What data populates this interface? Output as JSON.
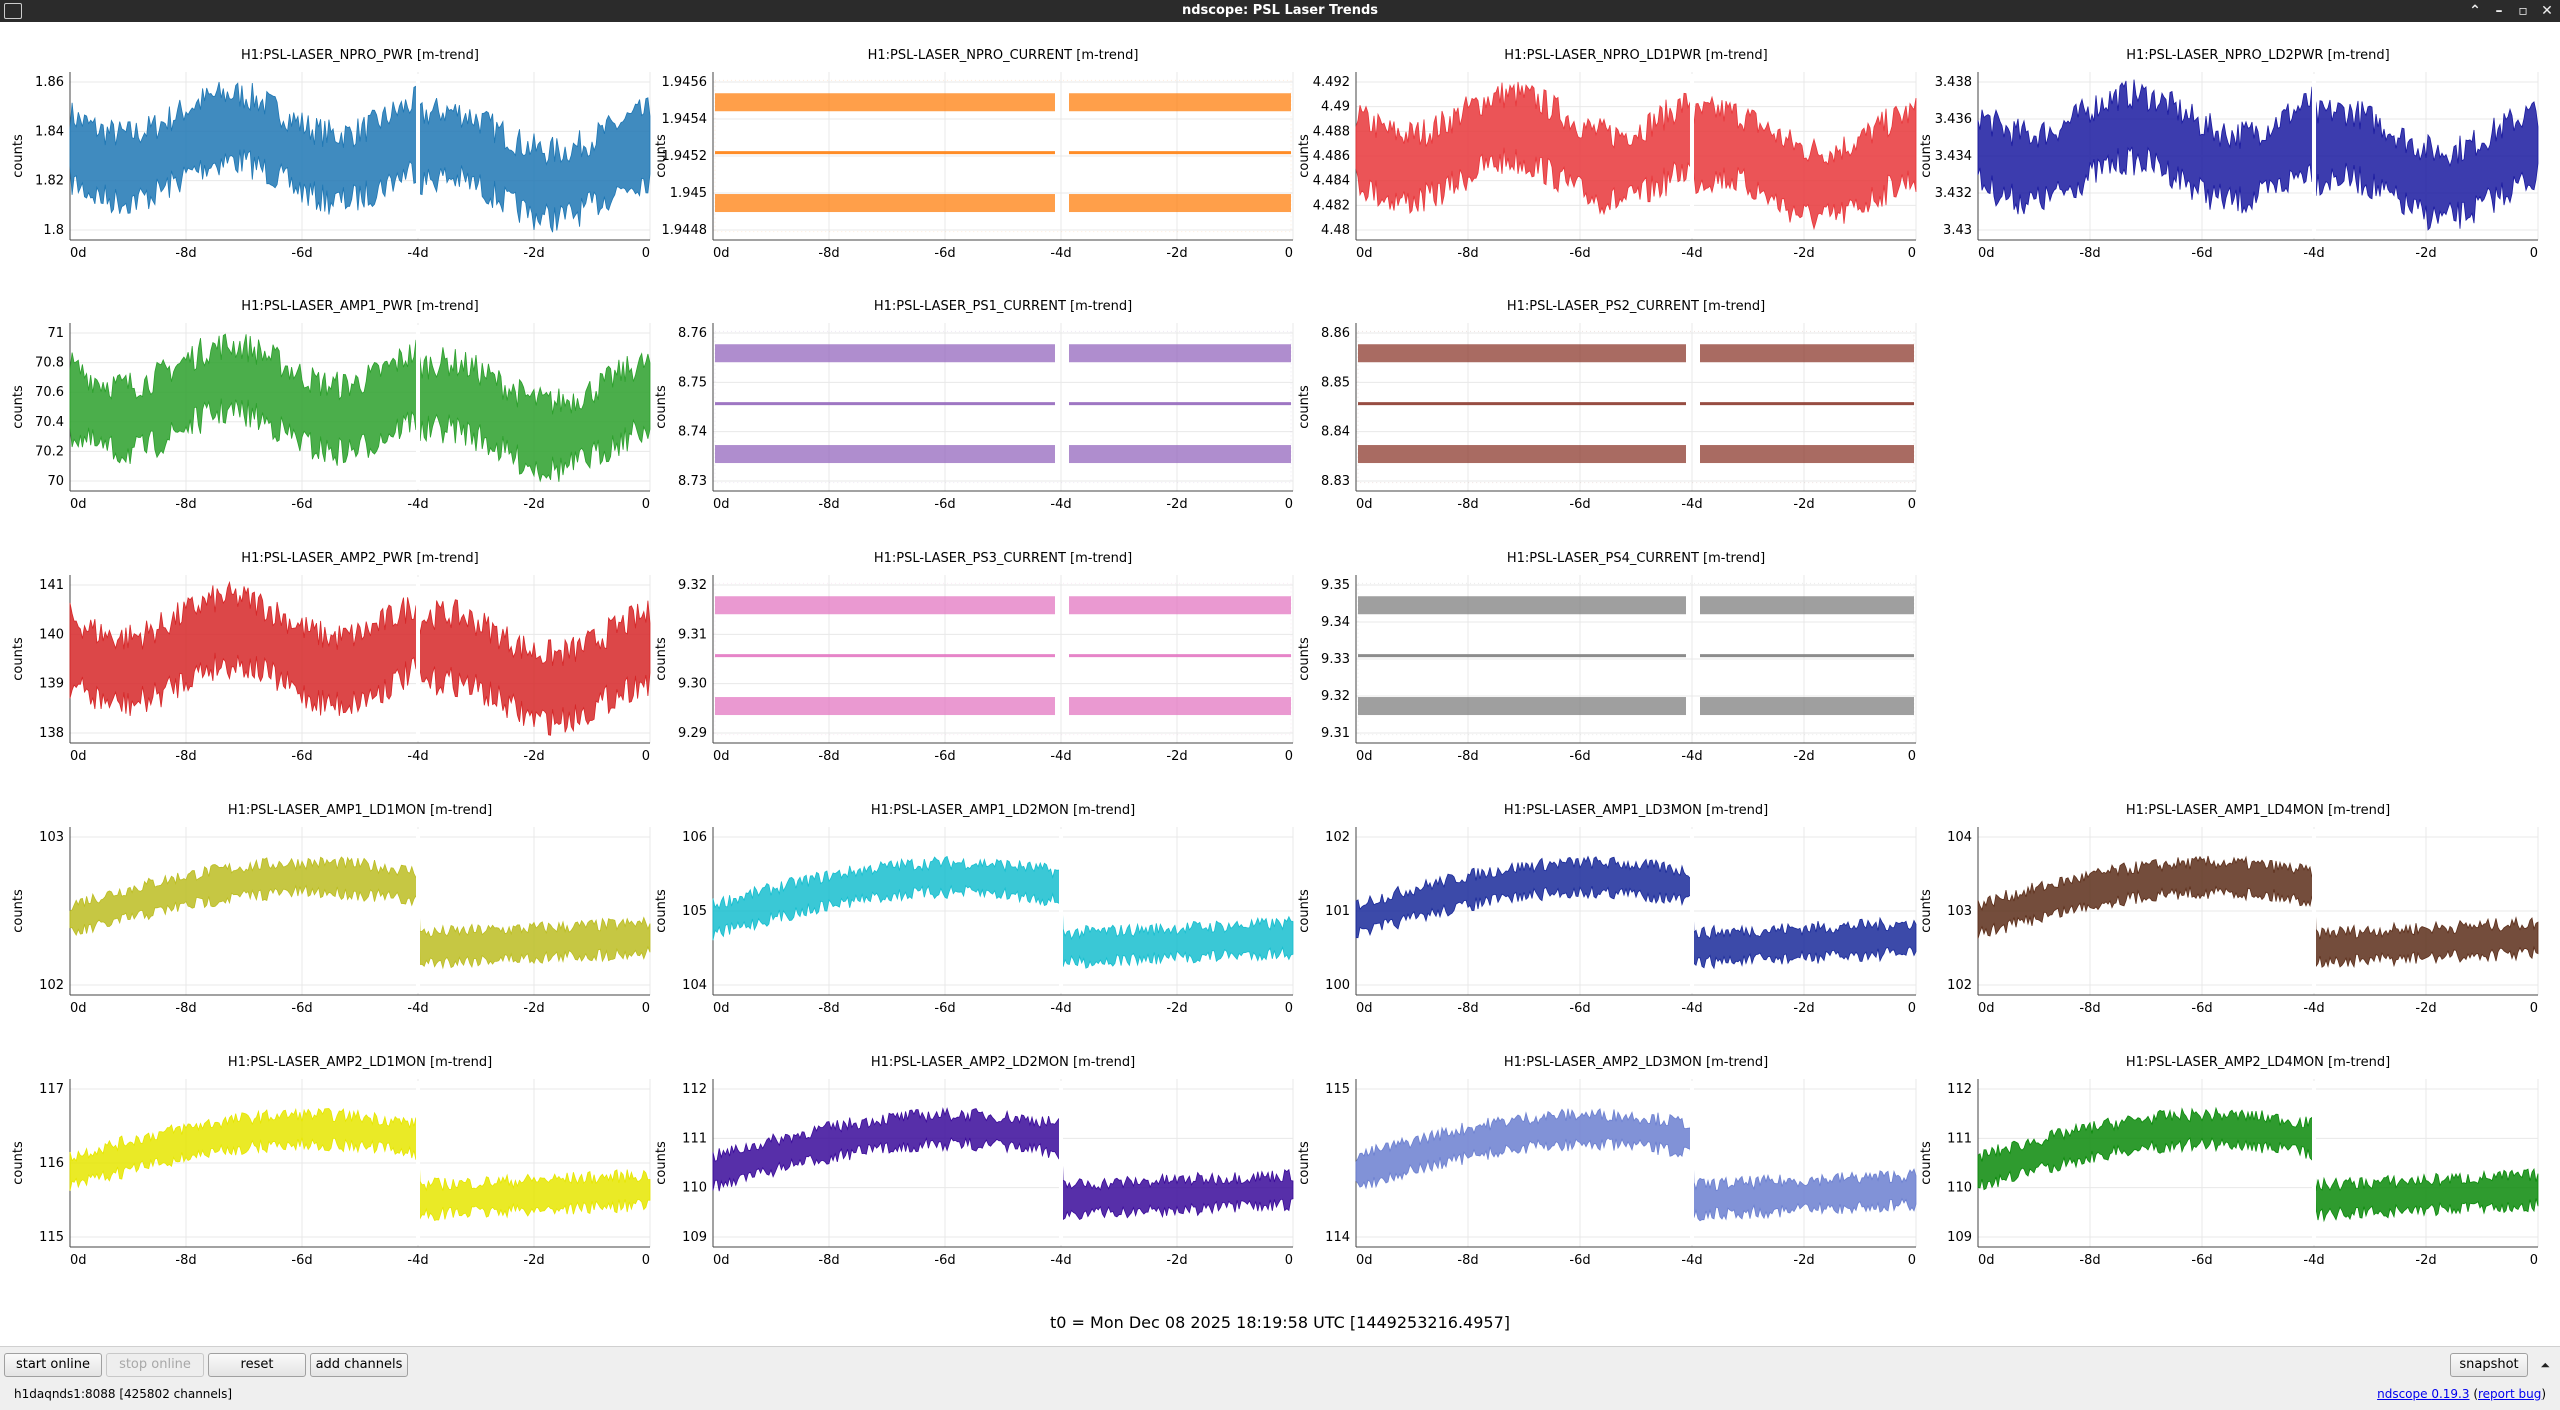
{
  "window": {
    "title": "ndscope: PSL Laser Trends",
    "buttons": {
      "minimize_up": "⌃",
      "minimize": "–",
      "maximize": "▫",
      "close": "✕"
    }
  },
  "axis": {
    "ylabel": "counts",
    "xticks": [
      "0d",
      "-8d",
      "-6d",
      "-4d",
      "-2d",
      "0"
    ]
  },
  "plots": [
    {
      "row": 0,
      "col": 0,
      "title": "H1:PSL-LASER_NPRO_PWR [m-trend]",
      "color": "#1f77b4",
      "yticks": [
        "1.86",
        "1.84",
        "1.82",
        "1.8"
      ],
      "style": "noise"
    },
    {
      "row": 0,
      "col": 1,
      "title": "H1:PSL-LASER_NPRO_CURRENT [m-trend]",
      "color": "#ff7f0e",
      "yticks": [
        "1.9456",
        "1.9454",
        "1.9452",
        "1.945",
        "1.9448"
      ],
      "style": "bands"
    },
    {
      "row": 0,
      "col": 2,
      "title": "H1:PSL-LASER_NPRO_LD1PWR [m-trend]",
      "color": "#e8363a",
      "yticks": [
        "4.492",
        "4.49",
        "4.488",
        "4.486",
        "4.484",
        "4.482",
        "4.48"
      ],
      "style": "noise"
    },
    {
      "row": 0,
      "col": 3,
      "title": "H1:PSL-LASER_NPRO_LD2PWR [m-trend]",
      "color": "#1a1aa0",
      "yticks": [
        "3.438",
        "3.436",
        "3.434",
        "3.432",
        "3.43"
      ],
      "style": "noise"
    },
    {
      "row": 1,
      "col": 0,
      "title": "H1:PSL-LASER_AMP1_PWR [m-trend]",
      "color": "#2ca02c",
      "yticks": [
        "71",
        "70.8",
        "70.6",
        "70.4",
        "70.2",
        "70"
      ],
      "style": "noise"
    },
    {
      "row": 1,
      "col": 1,
      "title": "H1:PSL-LASER_PS1_CURRENT [m-trend]",
      "color": "#9467bd",
      "yticks": [
        "8.76",
        "8.75",
        "8.74",
        "8.73"
      ],
      "style": "bands"
    },
    {
      "row": 1,
      "col": 2,
      "title": "H1:PSL-LASER_PS2_CURRENT [m-trend]",
      "color": "#8c3a2e",
      "yticks": [
        "8.86",
        "8.85",
        "8.84",
        "8.83"
      ],
      "style": "bands"
    },
    {
      "row": 2,
      "col": 0,
      "title": "H1:PSL-LASER_AMP2_PWR [m-trend]",
      "color": "#d62728",
      "yticks": [
        "141",
        "140",
        "139",
        "138"
      ],
      "style": "noise"
    },
    {
      "row": 2,
      "col": 1,
      "title": "H1:PSL-LASER_PS3_CURRENT [m-trend]",
      "color": "#e377c2",
      "yticks": [
        "9.32",
        "9.31",
        "9.30",
        "9.29"
      ],
      "style": "bands"
    },
    {
      "row": 2,
      "col": 2,
      "title": "H1:PSL-LASER_PS4_CURRENT [m-trend]",
      "color": "#7f7f7f",
      "yticks": [
        "9.35",
        "9.34",
        "9.33",
        "9.32",
        "9.31"
      ],
      "style": "bands"
    },
    {
      "row": 3,
      "col": 0,
      "title": "H1:PSL-LASER_AMP1_LD1MON [m-trend]",
      "color": "#bcbd22",
      "yticks": [
        "103",
        "102"
      ],
      "style": "trend"
    },
    {
      "row": 3,
      "col": 1,
      "title": "H1:PSL-LASER_AMP1_LD2MON [m-trend]",
      "color": "#17becf",
      "yticks": [
        "106",
        "105",
        "104"
      ],
      "style": "trend"
    },
    {
      "row": 3,
      "col": 2,
      "title": "H1:PSL-LASER_AMP1_LD3MON [m-trend]",
      "color": "#1a2a9a",
      "yticks": [
        "102",
        "101",
        "100"
      ],
      "style": "trend"
    },
    {
      "row": 3,
      "col": 3,
      "title": "H1:PSL-LASER_AMP1_LD4MON [m-trend]",
      "color": "#5c2e1a",
      "yticks": [
        "104",
        "103",
        "102"
      ],
      "style": "trend"
    },
    {
      "row": 4,
      "col": 0,
      "title": "H1:PSL-LASER_AMP2_LD1MON [m-trend]",
      "color": "#e6e600",
      "yticks": [
        "117",
        "116",
        "115"
      ],
      "style": "trend"
    },
    {
      "row": 4,
      "col": 1,
      "title": "H1:PSL-LASER_AMP2_LD2MON [m-trend]",
      "color": "#3a0a9a",
      "yticks": [
        "112",
        "111",
        "110",
        "109"
      ],
      "style": "trend"
    },
    {
      "row": 4,
      "col": 2,
      "title": "H1:PSL-LASER_AMP2_LD3MON [m-trend]",
      "color": "#6b7fd0",
      "yticks": [
        "115",
        "114"
      ],
      "style": "trend"
    },
    {
      "row": 4,
      "col": 3,
      "title": "H1:PSL-LASER_AMP2_LD4MON [m-trend]",
      "color": "#0a8a0a",
      "yticks": [
        "112",
        "111",
        "110",
        "109"
      ],
      "style": "trend"
    }
  ],
  "t0_label": "t0 = Mon Dec 08 2025 18:19:58 UTC [1449253216.4957]",
  "toolbar": {
    "start_online": "start online",
    "stop_online": "stop online",
    "reset": "reset",
    "add_channels": "add channels",
    "snapshot": "snapshot",
    "expand": "⏶"
  },
  "status": {
    "server": "h1daqnds1:8088  [425802 channels]",
    "version_prefix": "ndscope ",
    "version": "0.19.3",
    "bug_open": " (",
    "report_bug": "report bug",
    "bug_close": ")"
  }
}
